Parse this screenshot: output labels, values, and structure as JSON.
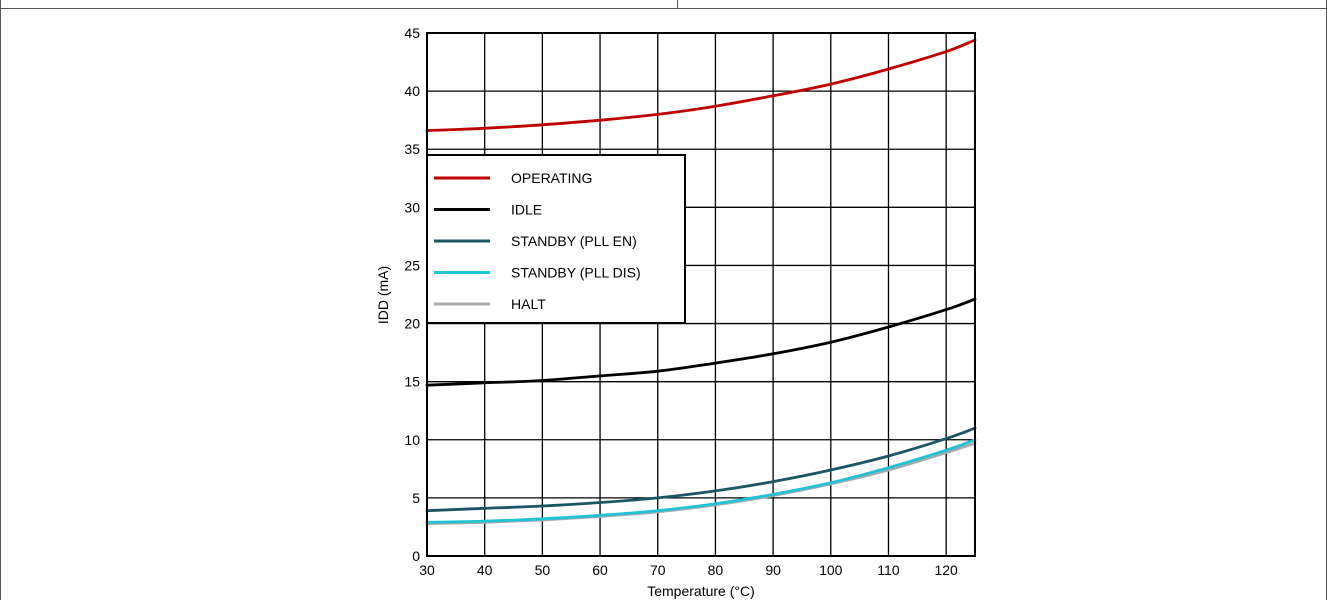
{
  "chart_data": {
    "type": "line",
    "title": "",
    "xlabel": "Temperature (°C)",
    "ylabel": "IDD (mA)",
    "xlim": [
      30,
      125
    ],
    "ylim": [
      0,
      45
    ],
    "xticks": [
      30,
      40,
      50,
      60,
      70,
      80,
      90,
      100,
      110,
      120
    ],
    "yticks": [
      0,
      5,
      10,
      15,
      20,
      25,
      30,
      35,
      40,
      45
    ],
    "grid": true,
    "legend_position": "center-left",
    "x": [
      30,
      40,
      50,
      60,
      70,
      80,
      90,
      100,
      110,
      120,
      125
    ],
    "series": [
      {
        "name": "OPERATING",
        "color": "#c00000",
        "values": [
          36.6,
          36.8,
          37.1,
          37.5,
          38.0,
          38.7,
          39.6,
          40.6,
          41.9,
          43.4,
          44.4
        ]
      },
      {
        "name": "IDLE",
        "color": "#000000",
        "values": [
          14.7,
          14.9,
          15.1,
          15.5,
          15.9,
          16.6,
          17.4,
          18.4,
          19.7,
          21.2,
          22.1
        ]
      },
      {
        "name": "STANDBY (PLL EN)",
        "color": "#1b5566",
        "values": [
          3.9,
          4.1,
          4.3,
          4.6,
          5.0,
          5.6,
          6.4,
          7.4,
          8.6,
          10.1,
          11.0
        ]
      },
      {
        "name": "STANDBY (PLL DIS)",
        "color": "#1ec3d6",
        "values": [
          2.9,
          3.0,
          3.2,
          3.5,
          3.9,
          4.5,
          5.3,
          6.3,
          7.6,
          9.1,
          10.0
        ]
      },
      {
        "name": "HALT",
        "color": "#a9a9a9",
        "values": [
          2.8,
          2.9,
          3.1,
          3.4,
          3.8,
          4.4,
          5.2,
          6.2,
          7.4,
          8.9,
          9.7
        ]
      }
    ]
  }
}
